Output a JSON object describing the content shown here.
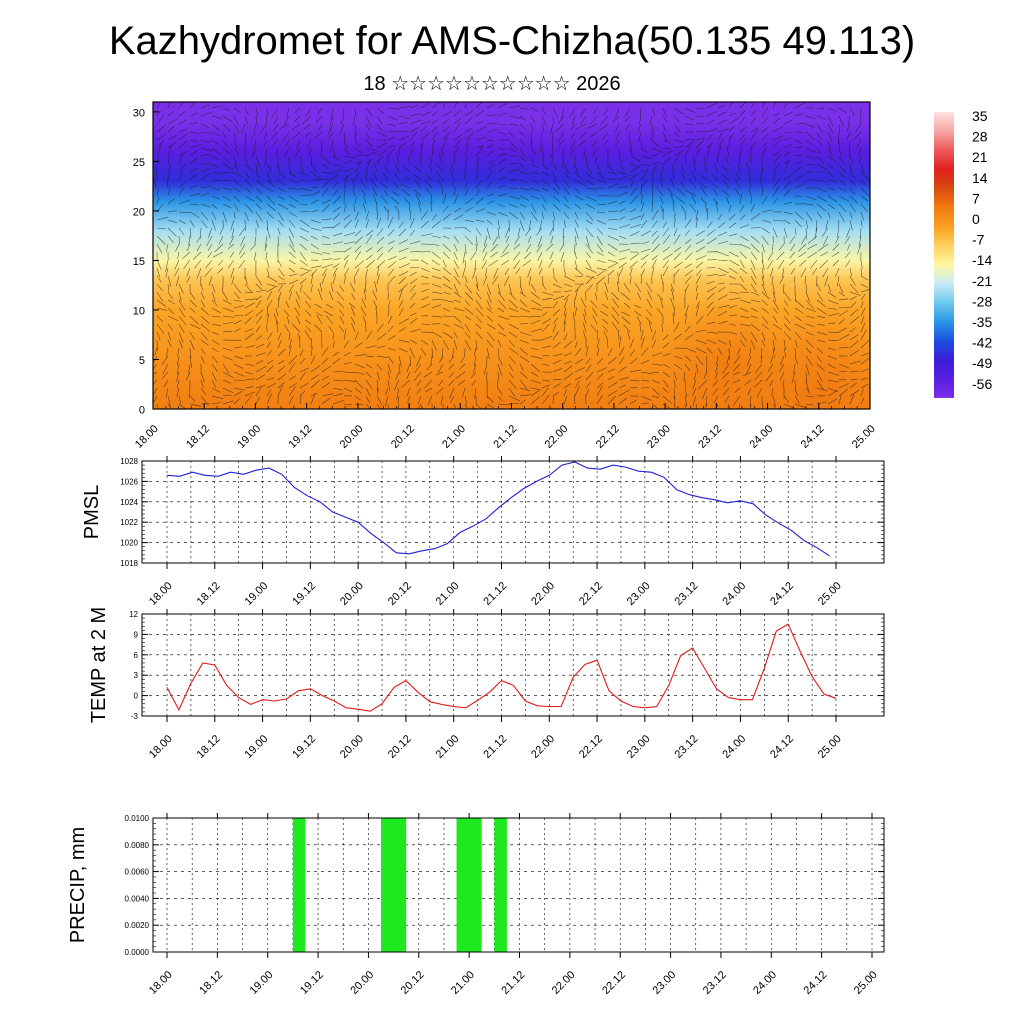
{
  "title": "Kazhydromet for AMS-Chizha(50.135 49.113)",
  "subtitle": "18 ☆☆☆☆☆☆☆☆☆☆ 2026",
  "chart_data": [
    {
      "type": "heatmap",
      "name": "temperature-cross-section",
      "x_tick_labels": [
        "18.00",
        "18.12",
        "19.00",
        "19.12",
        "20.00",
        "20.12",
        "21.00",
        "21.12",
        "22.00",
        "22.12",
        "23.00",
        "23.12",
        "24.00",
        "24.12",
        "25.00"
      ],
      "y_ticks": [
        0,
        5,
        10,
        15,
        20,
        25,
        30
      ],
      "ylim": [
        0,
        31
      ],
      "colorbar_labels": [
        "35",
        "28",
        "21",
        "14",
        "7",
        "0",
        "-7",
        "-14",
        "-21",
        "-28",
        "-35",
        "-42",
        "-49",
        "-56"
      ],
      "colorbar_colors": [
        "#fde0e0",
        "#f7a7a7",
        "#ee5a5a",
        "#e02020",
        "#d84a10",
        "#f07a10",
        "#fba020",
        "#fdd060",
        "#fff6a0",
        "#c8ecf7",
        "#6ec8ee",
        "#2b96e6",
        "#1c50e0",
        "#3a1ed8",
        "#5a1ee0",
        "#7a30e8"
      ],
      "profile_levels": [
        0,
        5,
        10,
        13,
        15,
        18,
        21,
        23,
        26,
        29,
        31
      ],
      "profile_values": [
        4,
        1,
        -2,
        -6,
        -14,
        -22,
        -32,
        -42,
        -50,
        -56,
        -56
      ],
      "warm_spots": [
        [
          5.6,
          4,
          7
        ],
        [
          6.5,
          1.5,
          9
        ]
      ]
    },
    {
      "type": "line",
      "name": "pmsl",
      "ylabel": "PMSL",
      "ylim": [
        1018,
        1028
      ],
      "y_ticks": [
        1018,
        1020,
        1022,
        1024,
        1026,
        1028
      ],
      "x_tick_labels": [
        "18.00",
        "18.12",
        "19.00",
        "19.12",
        "20.00",
        "20.12",
        "21.00",
        "21.12",
        "22.00",
        "22.12",
        "23.00",
        "23.12",
        "24.00",
        "24.12",
        "25.00"
      ],
      "color": "#1f1fd6",
      "values": [
        1026.6,
        1026.5,
        1026.9,
        1026.6,
        1026.5,
        1026.9,
        1026.7,
        1027.1,
        1027.3,
        1026.7,
        1025.4,
        1024.6,
        1024.0,
        1023.0,
        1022.5,
        1022.0,
        1020.9,
        1020.0,
        1019.0,
        1018.9,
        1019.2,
        1019.4,
        1019.9,
        1021.0,
        1021.6,
        1022.3,
        1023.4,
        1024.4,
        1025.3,
        1026.0,
        1026.6,
        1027.6,
        1027.9,
        1027.3,
        1027.2,
        1027.6,
        1027.4,
        1027.0,
        1026.9,
        1026.4,
        1025.2,
        1024.7,
        1024.4,
        1024.2,
        1023.9,
        1024.1,
        1023.8,
        1022.7,
        1021.9,
        1021.2,
        1020.2,
        1019.5,
        1018.7
      ]
    },
    {
      "type": "line",
      "name": "temp-2m",
      "ylabel": "TEMP at 2 M",
      "ylim": [
        -3,
        12
      ],
      "y_ticks": [
        -3,
        0,
        3,
        6,
        9,
        12
      ],
      "x_tick_labels": [
        "18.00",
        "18.12",
        "19.00",
        "19.12",
        "20.00",
        "20.12",
        "21.00",
        "21.12",
        "22.00",
        "22.12",
        "23.00",
        "23.12",
        "24.00",
        "24.12",
        "25.00"
      ],
      "color": "#e01a1a",
      "values": [
        1.2,
        -2.1,
        1.8,
        4.8,
        4.5,
        1.5,
        -0.3,
        -1.3,
        -0.6,
        -0.8,
        -0.5,
        0.7,
        1.0,
        0.0,
        -0.8,
        -1.8,
        -2.0,
        -2.3,
        -1.2,
        1.2,
        2.2,
        0.5,
        -0.9,
        -1.3,
        -1.6,
        -1.8,
        -0.7,
        0.5,
        2.2,
        1.5,
        -0.8,
        -1.5,
        -1.6,
        -1.6,
        2.7,
        4.6,
        5.2,
        0.7,
        -0.8,
        -1.6,
        -1.8,
        -1.6,
        1.5,
        5.9,
        7.0,
        4.0,
        1.0,
        -0.3,
        -0.6,
        -0.6,
        4.0,
        9.5,
        10.5,
        6.5,
        2.8,
        0.2,
        -0.4
      ]
    },
    {
      "type": "bar",
      "name": "precip",
      "ylabel": "PRECIP, mm",
      "ylim": [
        0,
        0.01
      ],
      "y_tick_labels": [
        "0.0000",
        "0.0020",
        "0.0040",
        "0.0060",
        "0.0080",
        "0.0100"
      ],
      "x_tick_labels": [
        "18.00",
        "18.12",
        "19.00",
        "19.12",
        "20.00",
        "20.12",
        "21.00",
        "21.12",
        "22.00",
        "22.12",
        "23.00",
        "23.12",
        "24.00",
        "24.12",
        "25.00"
      ],
      "color": "#1ee81e",
      "bars": [
        {
          "start_hour": 30,
          "end_hour": 33,
          "value": 0.01
        },
        {
          "start_hour": 51,
          "end_hour": 57,
          "value": 0.01
        },
        {
          "start_hour": 69,
          "end_hour": 75,
          "value": 0.01
        },
        {
          "start_hour": 78,
          "end_hour": 81,
          "value": 0.01
        }
      ]
    }
  ]
}
